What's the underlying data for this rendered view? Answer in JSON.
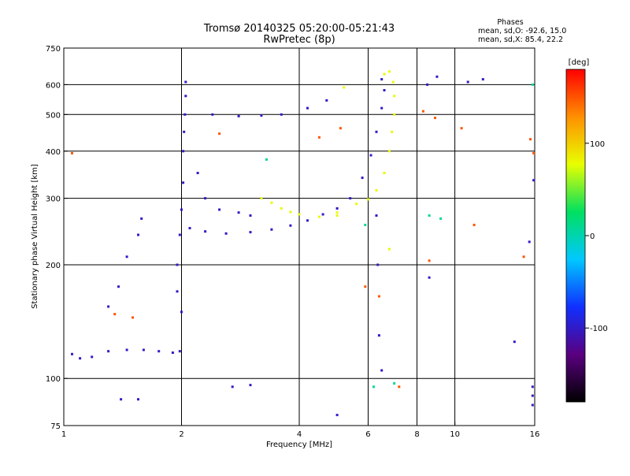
{
  "header": {
    "title": "Tromsø 20140325 05:20:00-05:21:43",
    "subtitle": "RwPretec (8p)"
  },
  "phase_info": {
    "heading": "Phases",
    "line1": "mean, sd,O: -92.6, 15.0",
    "line2": "mean, sd,X: 85.4, 22.2"
  },
  "colorbar": {
    "unit_label": "[deg]",
    "ticks": [
      {
        "value": 100,
        "label": "100"
      },
      {
        "value": 0,
        "label": "0"
      },
      {
        "value": -100,
        "label": "-100"
      }
    ],
    "range": [
      -180,
      180
    ],
    "colors": [
      "#000000",
      "#5a0080",
      "#1030ff",
      "#00c8ff",
      "#00e060",
      "#e8ff00",
      "#ff9000",
      "#ff0000"
    ]
  },
  "chart_data": {
    "type": "scatter",
    "title": "Tromsø 20140325 05:20:00-05:21:43",
    "subtitle": "RwPretec (8p)",
    "xlabel": "Frequency [MHz]",
    "ylabel": "Stationary phase Virtual Height [km]",
    "xscale": "log",
    "yscale": "log",
    "xlim": [
      1,
      16
    ],
    "ylim": [
      75,
      750
    ],
    "x_ticks": [
      1,
      2,
      4,
      6,
      8,
      10,
      16
    ],
    "x_tick_labels": [
      "1",
      "2",
      "4",
      "6",
      "8",
      "10",
      "16"
    ],
    "y_ticks": [
      75,
      100,
      200,
      300,
      400,
      500,
      600,
      750
    ],
    "y_tick_labels": [
      "75",
      "100",
      "200",
      "300",
      "400",
      "500",
      "600",
      "750"
    ],
    "x_gridlines": [
      2,
      4,
      6,
      8,
      10
    ],
    "y_gridlines": [
      100,
      200,
      300,
      400,
      500,
      600
    ],
    "series": [
      {
        "phase_deg": -100,
        "points": [
          [
            1.05,
            116
          ],
          [
            1.1,
            113
          ],
          [
            1.18,
            114
          ],
          [
            1.3,
            118
          ],
          [
            1.45,
            119
          ],
          [
            1.6,
            119
          ],
          [
            1.75,
            118
          ],
          [
            1.9,
            117
          ],
          [
            1.98,
            118
          ],
          [
            2.0,
            150
          ],
          [
            1.95,
            170
          ],
          [
            1.95,
            200
          ],
          [
            1.98,
            240
          ],
          [
            2.0,
            280
          ],
          [
            2.02,
            330
          ],
          [
            2.02,
            400
          ],
          [
            2.03,
            450
          ],
          [
            2.04,
            500
          ],
          [
            2.05,
            560
          ],
          [
            2.05,
            610
          ],
          [
            2.1,
            250
          ],
          [
            2.3,
            245
          ],
          [
            2.6,
            242
          ],
          [
            3.0,
            244
          ],
          [
            3.4,
            248
          ],
          [
            3.8,
            254
          ],
          [
            4.2,
            262
          ],
          [
            4.6,
            272
          ],
          [
            5.0,
            282
          ],
          [
            5.4,
            300
          ],
          [
            5.8,
            340
          ],
          [
            6.1,
            390
          ],
          [
            6.3,
            450
          ],
          [
            6.5,
            520
          ],
          [
            6.6,
            580
          ],
          [
            2.4,
            500
          ],
          [
            2.8,
            495
          ],
          [
            3.2,
            497
          ],
          [
            3.6,
            500
          ],
          [
            4.2,
            520
          ],
          [
            4.7,
            545
          ],
          [
            1.3,
            155
          ],
          [
            1.38,
            175
          ],
          [
            1.45,
            210
          ],
          [
            1.55,
            240
          ],
          [
            1.58,
            265
          ],
          [
            2.2,
            350
          ],
          [
            2.3,
            300
          ],
          [
            2.5,
            280
          ],
          [
            2.8,
            275
          ],
          [
            3.0,
            270
          ],
          [
            2.7,
            95
          ],
          [
            3.0,
            96
          ],
          [
            5.0,
            80
          ],
          [
            6.5,
            620
          ],
          [
            8.5,
            600
          ],
          [
            9.0,
            630
          ],
          [
            10.8,
            610
          ],
          [
            11.8,
            620
          ],
          [
            6.3,
            270
          ],
          [
            6.35,
            200
          ],
          [
            6.4,
            130
          ],
          [
            6.5,
            105
          ],
          [
            15.8,
            90
          ],
          [
            15.8,
            85
          ],
          [
            15.8,
            95
          ],
          [
            1.4,
            88
          ],
          [
            1.55,
            88
          ],
          [
            14.2,
            125
          ],
          [
            15.5,
            230
          ],
          [
            8.6,
            185
          ],
          [
            15.9,
            335
          ]
        ]
      },
      {
        "phase_deg": 80,
        "points": [
          [
            3.2,
            300
          ],
          [
            3.4,
            292
          ],
          [
            3.6,
            282
          ],
          [
            3.8,
            276
          ],
          [
            4.0,
            272
          ],
          [
            4.5,
            268
          ],
          [
            5.0,
            275
          ],
          [
            5.6,
            290
          ],
          [
            6.0,
            298
          ],
          [
            6.3,
            315
          ],
          [
            6.6,
            350
          ],
          [
            6.8,
            400
          ],
          [
            6.9,
            450
          ],
          [
            7.0,
            500
          ],
          [
            7.0,
            560
          ],
          [
            6.95,
            610
          ],
          [
            6.8,
            650
          ],
          [
            6.6,
            640
          ],
          [
            5.2,
            590
          ],
          [
            5.0,
            270
          ],
          [
            6.8,
            220
          ]
        ]
      },
      {
        "phase_deg": 10,
        "points": [
          [
            6.2,
            95
          ],
          [
            7.0,
            97
          ],
          [
            8.6,
            270
          ],
          [
            9.2,
            265
          ],
          [
            5.9,
            255
          ],
          [
            3.3,
            380
          ],
          [
            15.8,
            600
          ]
        ]
      },
      {
        "phase_deg": 150,
        "points": [
          [
            1.35,
            148
          ],
          [
            1.5,
            145
          ],
          [
            2.5,
            445
          ],
          [
            4.5,
            435
          ],
          [
            5.1,
            460
          ],
          [
            6.4,
            165
          ],
          [
            7.2,
            95
          ],
          [
            8.3,
            510
          ],
          [
            8.9,
            490
          ],
          [
            10.4,
            460
          ],
          [
            11.2,
            255
          ],
          [
            15.0,
            210
          ],
          [
            15.6,
            430
          ],
          [
            15.9,
            395
          ],
          [
            1.05,
            395
          ],
          [
            8.6,
            205
          ],
          [
            5.9,
            175
          ]
        ]
      }
    ]
  }
}
